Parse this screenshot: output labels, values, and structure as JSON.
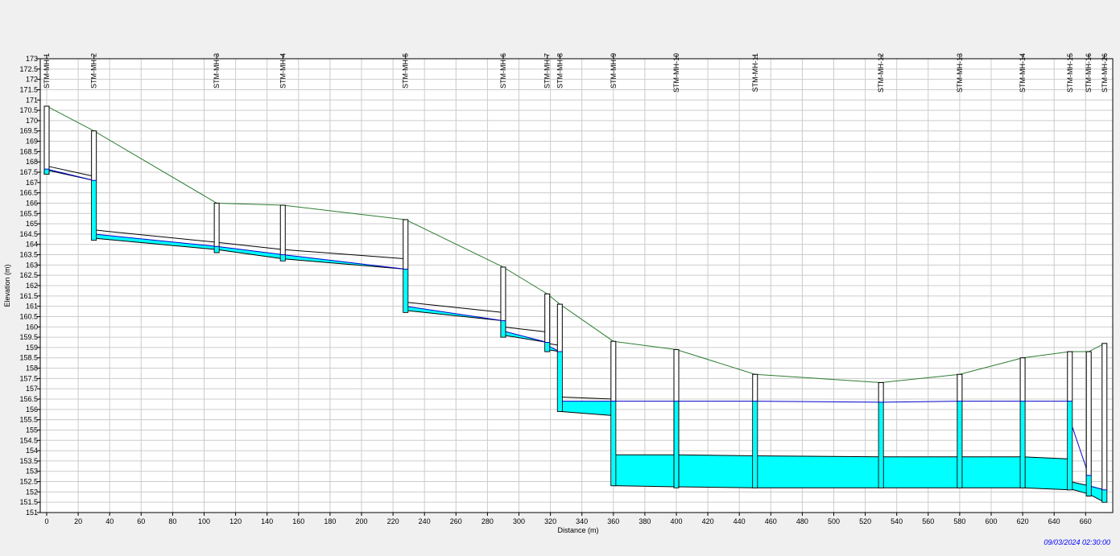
{
  "chart_data": {
    "type": "profile",
    "xlabel": "Distance (m)",
    "ylabel": "Elevation (m)",
    "xlim": [
      0,
      674
    ],
    "ylim": [
      151,
      173
    ],
    "x_ticks": [
      "0",
      "20",
      "40",
      "60",
      "80",
      "100",
      "120",
      "140",
      "160",
      "180",
      "200",
      "220",
      "240",
      "260",
      "280",
      "300",
      "320",
      "340",
      "360",
      "380",
      "400",
      "420",
      "440",
      "460",
      "480",
      "500",
      "520",
      "540",
      "560",
      "580",
      "600",
      "620",
      "640",
      "660"
    ],
    "y_ticks": [
      "151",
      "151.5",
      "152",
      "152.5",
      "153",
      "153.5",
      "154",
      "154.5",
      "155",
      "155.5",
      "156",
      "156.5",
      "157",
      "157.5",
      "158",
      "158.5",
      "159",
      "159.5",
      "160",
      "160.5",
      "161",
      "161.5",
      "162",
      "162.5",
      "163",
      "163.5",
      "164",
      "164.5",
      "165",
      "165.5",
      "166",
      "166.5",
      "167",
      "167.5",
      "168",
      "168.5",
      "169",
      "169.5",
      "170",
      "170.5",
      "171",
      "171.5",
      "172",
      "172.5",
      "173"
    ],
    "timestamp": "09/03/2024 02:30:00",
    "grid": true,
    "colors": {
      "ground": "#2e7d32",
      "water": "#00ffff",
      "hgl": "#0000cc",
      "structure": "#000000",
      "timestamp": "#0000ff"
    },
    "manholes": [
      {
        "name": "STM-MH-1",
        "x": 0,
        "ground": 170.7,
        "invert": 167.4
      },
      {
        "name": "STM-MH-2",
        "x": 30,
        "ground": 169.5,
        "invert": 164.2
      },
      {
        "name": "STM-MH-3",
        "x": 108,
        "ground": 166.0,
        "invert": 163.6
      },
      {
        "name": "STM-MH-4",
        "x": 150,
        "ground": 165.9,
        "invert": 163.2
      },
      {
        "name": "STM-MH-5",
        "x": 228,
        "ground": 165.2,
        "invert": 160.7
      },
      {
        "name": "STM-MH-6",
        "x": 290,
        "ground": 162.9,
        "invert": 159.5
      },
      {
        "name": "STM-MH-7",
        "x": 318,
        "ground": 161.6,
        "invert": 158.8
      },
      {
        "name": "STM-MH-8",
        "x": 326,
        "ground": 161.1,
        "invert": 155.9
      },
      {
        "name": "STM-MH-9",
        "x": 360,
        "ground": 159.3,
        "invert": 152.3
      },
      {
        "name": "STM-MH-10",
        "x": 400,
        "ground": 158.9,
        "invert": 152.2
      },
      {
        "name": "STM-MH-11",
        "x": 450,
        "ground": 157.7,
        "invert": 152.2
      },
      {
        "name": "STM-MH-12",
        "x": 530,
        "ground": 157.3,
        "invert": 152.2
      },
      {
        "name": "STM-MH-13",
        "x": 580,
        "ground": 157.7,
        "invert": 152.2
      },
      {
        "name": "STM-MH-14",
        "x": 620,
        "ground": 158.5,
        "invert": 152.2
      },
      {
        "name": "STM-MH-15",
        "x": 650,
        "ground": 158.8,
        "invert": 152.1
      },
      {
        "name": "STM-MH-16",
        "x": 662,
        "ground": 158.8,
        "invert": 151.8
      },
      {
        "name": "STM-MH-26",
        "x": 672,
        "ground": 159.2,
        "invert": 151.5
      }
    ],
    "conduits": [
      {
        "x1": 0,
        "x2": 30,
        "inv1": 167.6,
        "inv2": 167.1,
        "crown1": 167.8,
        "crown2": 167.3,
        "wl1": 167.65,
        "wl2": 167.1
      },
      {
        "x1": 30,
        "x2": 108,
        "inv1": 164.3,
        "inv2": 163.75,
        "crown1": 164.7,
        "crown2": 164.1,
        "wl1": 164.5,
        "wl2": 163.9
      },
      {
        "x1": 108,
        "x2": 150,
        "inv1": 163.75,
        "inv2": 163.3,
        "crown1": 164.1,
        "crown2": 163.75,
        "wl1": 163.9,
        "wl2": 163.5
      },
      {
        "x1": 150,
        "x2": 228,
        "inv1": 163.3,
        "inv2": 162.8,
        "crown1": 163.75,
        "crown2": 163.3,
        "wl1": 163.5,
        "wl2": 162.8
      },
      {
        "x1": 228,
        "x2": 290,
        "inv1": 160.8,
        "inv2": 160.3,
        "crown1": 161.2,
        "crown2": 160.7,
        "wl1": 161.0,
        "wl2": 160.3
      },
      {
        "x1": 290,
        "x2": 318,
        "inv1": 159.6,
        "inv2": 159.25,
        "crown1": 160.0,
        "crown2": 159.75,
        "wl1": 159.8,
        "wl2": 159.25
      },
      {
        "x1": 318,
        "x2": 326,
        "inv1": 158.9,
        "inv2": 158.8,
        "crown1": 159.2,
        "crown2": 159.1,
        "wl1": 159.1,
        "wl2": 158.8
      },
      {
        "x1": 326,
        "x2": 360,
        "inv1": 155.9,
        "inv2": 155.7,
        "crown1": 156.6,
        "crown2": 156.5,
        "wl1": 156.4,
        "wl2": 156.4
      },
      {
        "x1": 360,
        "x2": 400,
        "inv1": 152.3,
        "inv2": 152.25,
        "crown1": 153.8,
        "crown2": 153.8,
        "wl1": 156.4,
        "wl2": 156.4
      },
      {
        "x1": 400,
        "x2": 450,
        "inv1": 152.25,
        "inv2": 152.2,
        "crown1": 153.8,
        "crown2": 153.75,
        "wl1": 156.4,
        "wl2": 156.4
      },
      {
        "x1": 450,
        "x2": 530,
        "inv1": 152.2,
        "inv2": 152.2,
        "crown1": 153.75,
        "crown2": 153.7,
        "wl1": 156.4,
        "wl2": 156.35
      },
      {
        "x1": 530,
        "x2": 580,
        "inv1": 152.2,
        "inv2": 152.2,
        "crown1": 153.7,
        "crown2": 153.7,
        "wl1": 156.35,
        "wl2": 156.4
      },
      {
        "x1": 580,
        "x2": 620,
        "inv1": 152.2,
        "inv2": 152.2,
        "crown1": 153.7,
        "crown2": 153.7,
        "wl1": 156.4,
        "wl2": 156.4
      },
      {
        "x1": 620,
        "x2": 650,
        "inv1": 152.2,
        "inv2": 152.1,
        "crown1": 153.7,
        "crown2": 153.6,
        "wl1": 156.4,
        "wl2": 156.4
      },
      {
        "x1": 650,
        "x2": 662,
        "inv1": 152.15,
        "inv2": 151.9,
        "crown1": 152.5,
        "crown2": 152.3,
        "wl1": 155.5,
        "wl2": 152.8
      },
      {
        "x1": 662,
        "x2": 672,
        "inv1": 151.9,
        "inv2": 151.5,
        "crown1": 152.3,
        "crown2": 152.1,
        "wl1": 152.3,
        "wl2": 152.1
      }
    ]
  }
}
